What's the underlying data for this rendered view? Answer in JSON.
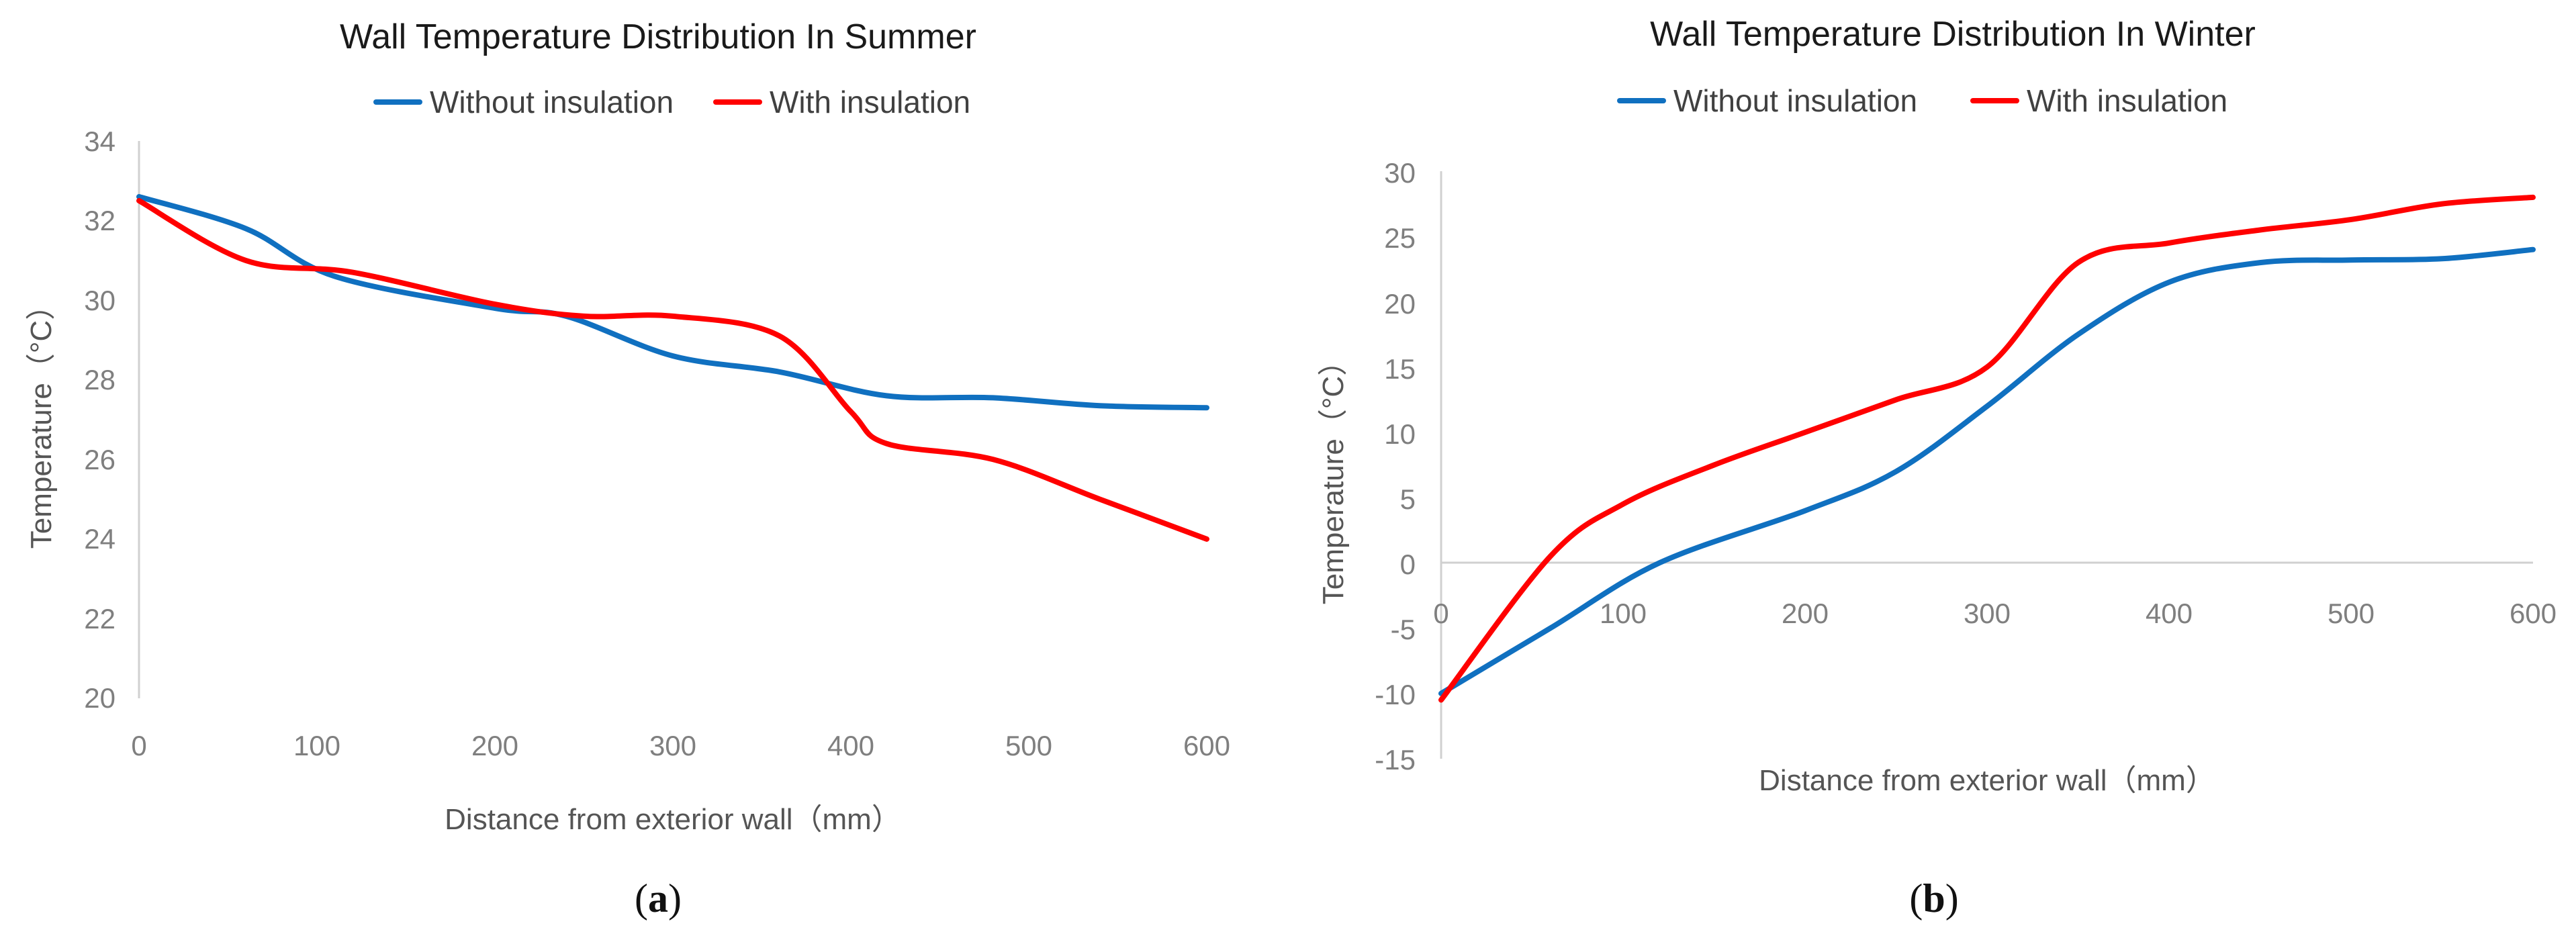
{
  "chart_data": [
    {
      "type": "line",
      "title": "Wall Temperature Distribution In Summer",
      "xlabel": "Distance from exterior wall（mm）",
      "ylabel": "Temperature（°C）",
      "xlim": [
        0,
        600
      ],
      "ylim": [
        20,
        34
      ],
      "xticks": [
        0,
        100,
        200,
        300,
        400,
        500,
        600
      ],
      "yticks": [
        20,
        22,
        24,
        26,
        28,
        30,
        32,
        34
      ],
      "legend_position": "top",
      "grid": false,
      "panel_label": "a",
      "series": [
        {
          "name": "Without insulation",
          "color": "#1070c0",
          "x": [
            0,
            60,
            110,
            200,
            240,
            300,
            360,
            420,
            480,
            540,
            600
          ],
          "y": [
            32.6,
            31.8,
            30.6,
            29.8,
            29.6,
            28.6,
            28.2,
            27.6,
            27.55,
            27.35,
            27.3
          ]
        },
        {
          "name": "With insulation",
          "color": "#ff0000",
          "x": [
            0,
            60,
            120,
            200,
            250,
            300,
            360,
            400,
            420,
            480,
            540,
            600
          ],
          "y": [
            32.5,
            31.0,
            30.7,
            29.9,
            29.6,
            29.6,
            29.1,
            27.2,
            26.4,
            26.0,
            25.0,
            24.0
          ]
        }
      ]
    },
    {
      "type": "line",
      "title": "Wall Temperature Distribution In Winter",
      "xlabel": "Distance from exterior wall（mm）",
      "ylabel": "Temperature（°C）",
      "xlim": [
        0,
        600
      ],
      "ylim": [
        -15,
        30
      ],
      "xticks": [
        0,
        100,
        200,
        300,
        400,
        500,
        600
      ],
      "yticks": [
        -15,
        -10,
        -5,
        0,
        5,
        10,
        15,
        20,
        25,
        30
      ],
      "legend_position": "top",
      "grid": false,
      "panel_label": "b",
      "series": [
        {
          "name": "Without insulation",
          "color": "#1070c0",
          "x": [
            0,
            60,
            120,
            200,
            250,
            300,
            350,
            400,
            450,
            500,
            550,
            600
          ],
          "y": [
            -10.0,
            -5.0,
            0.0,
            4.0,
            7.0,
            12.0,
            17.5,
            21.5,
            23.0,
            23.2,
            23.3,
            24.0
          ]
        },
        {
          "name": "With insulation",
          "color": "#ff0000",
          "x": [
            0,
            60,
            100,
            150,
            200,
            250,
            300,
            350,
            400,
            450,
            500,
            550,
            600
          ],
          "y": [
            -10.5,
            0.5,
            4.5,
            7.5,
            10.0,
            12.5,
            15.0,
            23.0,
            24.5,
            25.5,
            26.3,
            27.5,
            28.0
          ]
        }
      ]
    }
  ]
}
